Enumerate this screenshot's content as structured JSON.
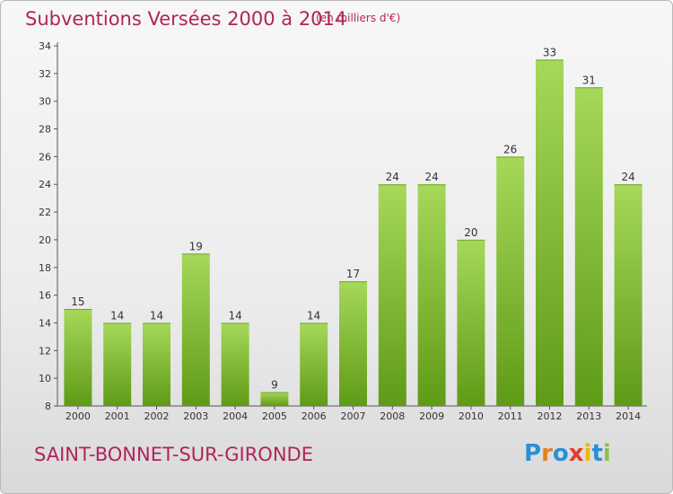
{
  "header": {
    "title": "Subventions Versées 2000 à 2014",
    "unit_note": "(en milliers d'€)"
  },
  "footer": {
    "commune": "SAINT-BONNET-SUR-GIRONDE",
    "logo_text": "Proxiti",
    "logo_colors": [
      "#2a8fd6",
      "#e67e22",
      "#2a8fd6",
      "#e63b2e",
      "#f2b600",
      "#2a8fd6",
      "#8bc34a"
    ]
  },
  "chart_data": {
    "type": "bar",
    "title": "Subventions Versées 2000 à 2014",
    "subtitle": "(en milliers d'€)",
    "xlabel": "",
    "ylabel": "",
    "categories": [
      "2000",
      "2001",
      "2002",
      "2003",
      "2004",
      "2005",
      "2006",
      "2007",
      "2008",
      "2009",
      "2010",
      "2011",
      "2012",
      "2013",
      "2014"
    ],
    "values": [
      15,
      14,
      14,
      19,
      14,
      9,
      14,
      17,
      24,
      24,
      20,
      26,
      33,
      31,
      24
    ],
    "data_labels": [
      "15",
      "14",
      "14",
      "19",
      "14",
      "9",
      "14",
      "17",
      "24",
      "24",
      "20",
      "26",
      "33",
      "31",
      "24"
    ],
    "ylim": [
      8,
      34
    ],
    "yticks": [
      8,
      10,
      12,
      14,
      16,
      18,
      20,
      22,
      24,
      26,
      28,
      30,
      32,
      34
    ],
    "grid": false,
    "legend": "none",
    "bar_color_top": "#a6d85a",
    "bar_color_bottom": "#5f9b16"
  }
}
